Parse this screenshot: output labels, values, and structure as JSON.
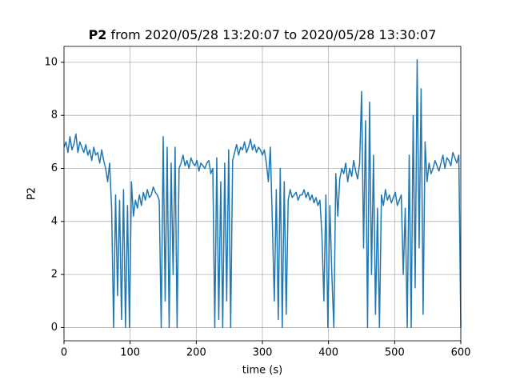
{
  "chart_data": {
    "type": "line",
    "title": [
      "P2",
      "from 2020/05/28 13:20:07 to 2020/05/28 13:30:07"
    ],
    "xlabel": "time (s)",
    "ylabel": "P2",
    "xlim": [
      0,
      600
    ],
    "xticks": [
      0,
      100,
      200,
      300,
      400,
      500,
      600
    ],
    "ylim": [
      -0.5,
      10.6
    ],
    "yticks": [
      0,
      2,
      4,
      6,
      8,
      10
    ],
    "grid": true,
    "color": "#1f77b4",
    "x": [
      0,
      3,
      6,
      9,
      12,
      15,
      18,
      21,
      24,
      27,
      30,
      33,
      36,
      39,
      42,
      45,
      48,
      51,
      54,
      57,
      60,
      63,
      66,
      69,
      72,
      75,
      78,
      81,
      84,
      87,
      90,
      93,
      96,
      99,
      102,
      105,
      108,
      111,
      114,
      117,
      120,
      123,
      126,
      129,
      132,
      135,
      138,
      141,
      144,
      147,
      150,
      153,
      156,
      159,
      162,
      165,
      168,
      171,
      174,
      177,
      180,
      183,
      186,
      189,
      192,
      195,
      198,
      201,
      204,
      207,
      210,
      213,
      216,
      219,
      222,
      225,
      228,
      231,
      234,
      237,
      240,
      243,
      246,
      249,
      252,
      255,
      258,
      261,
      264,
      267,
      270,
      273,
      276,
      279,
      282,
      285,
      288,
      291,
      294,
      297,
      300,
      303,
      306,
      309,
      312,
      315,
      318,
      321,
      324,
      327,
      330,
      333,
      336,
      339,
      342,
      345,
      348,
      351,
      354,
      357,
      360,
      363,
      366,
      369,
      372,
      375,
      378,
      381,
      384,
      387,
      390,
      393,
      396,
      399,
      402,
      405,
      408,
      411,
      414,
      417,
      420,
      423,
      426,
      429,
      432,
      435,
      438,
      441,
      444,
      447,
      450,
      453,
      456,
      459,
      462,
      465,
      468,
      471,
      474,
      477,
      480,
      483,
      486,
      489,
      492,
      495,
      498,
      501,
      504,
      507,
      510,
      513,
      516,
      519,
      522,
      525,
      528,
      531,
      534,
      537,
      540,
      543,
      546,
      549,
      552,
      555,
      558,
      561,
      564,
      567,
      570,
      573,
      576,
      579,
      582,
      585,
      588,
      591,
      594,
      597,
      600
    ],
    "values": [
      6.8,
      7.0,
      6.6,
      7.2,
      6.7,
      6.9,
      7.3,
      6.6,
      7.0,
      6.8,
      6.6,
      6.9,
      6.5,
      6.7,
      6.3,
      6.8,
      6.5,
      6.6,
      6.2,
      6.7,
      6.3,
      6.0,
      5.5,
      6.2,
      4.5,
      0.0,
      5.0,
      1.2,
      4.8,
      0.3,
      5.2,
      0.0,
      4.6,
      0.0,
      5.5,
      4.2,
      4.8,
      4.5,
      5.0,
      4.6,
      5.1,
      4.8,
      5.2,
      4.9,
      5.0,
      5.3,
      5.1,
      5.0,
      4.8,
      0.0,
      7.2,
      1.0,
      6.8,
      0.0,
      6.2,
      2.0,
      6.8,
      0.0,
      6.0,
      6.2,
      6.5,
      6.1,
      6.3,
      6.0,
      6.4,
      6.2,
      6.1,
      6.3,
      5.9,
      6.2,
      6.1,
      6.0,
      6.2,
      6.3,
      5.8,
      6.0,
      0.0,
      6.4,
      0.3,
      5.5,
      0.0,
      6.2,
      1.0,
      6.7,
      0.0,
      6.3,
      6.6,
      6.9,
      6.5,
      6.8,
      6.7,
      7.0,
      6.6,
      6.8,
      7.1,
      6.7,
      6.9,
      6.6,
      6.8,
      6.7,
      6.5,
      6.7,
      6.2,
      5.5,
      6.8,
      4.0,
      1.0,
      5.2,
      0.3,
      6.0,
      0.0,
      5.5,
      0.5,
      4.8,
      5.2,
      4.9,
      5.0,
      5.1,
      4.8,
      5.0,
      5.0,
      5.2,
      4.9,
      5.1,
      4.8,
      5.0,
      4.7,
      4.9,
      4.6,
      4.8,
      3.5,
      1.0,
      5.0,
      0.0,
      4.6,
      2.0,
      0.0,
      5.8,
      4.2,
      5.6,
      6.0,
      5.8,
      6.2,
      5.5,
      6.0,
      5.7,
      6.3,
      5.9,
      5.6,
      6.2,
      8.9,
      3.0,
      7.8,
      0.0,
      8.5,
      2.0,
      6.5,
      0.5,
      4.5,
      0.0,
      5.0,
      4.6,
      5.2,
      4.8,
      5.0,
      4.7,
      4.9,
      5.1,
      4.6,
      4.8,
      5.0,
      2.0,
      4.5,
      0.0,
      6.5,
      0.0,
      8.0,
      1.5,
      10.1,
      3.0,
      9.0,
      0.5,
      7.0,
      5.5,
      6.2,
      5.8,
      6.0,
      6.3,
      6.1,
      5.9,
      6.2,
      6.5,
      6.0,
      6.4,
      6.3,
      6.1,
      6.6,
      6.4,
      6.2,
      6.5,
      0.0
    ]
  }
}
